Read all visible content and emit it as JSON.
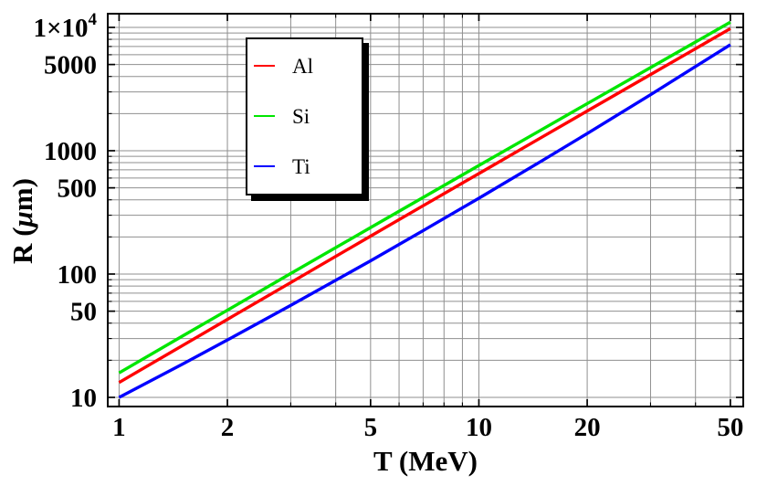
{
  "chart_data": {
    "type": "line",
    "title": "",
    "xlabel": "T (MeV)",
    "ylabel": "R (μm)",
    "ylabel_parts": {
      "pre": "R (",
      "mu": "μ",
      "post": "m)"
    },
    "x_scale": "log",
    "y_scale": "log",
    "xlim": [
      0.93,
      54.3
    ],
    "ylim": [
      8.43,
      12910
    ],
    "grid": true,
    "legend_position": "upper-left-inside",
    "x_ticks": [
      {
        "v": 1,
        "label": "1"
      },
      {
        "v": 2,
        "label": "2"
      },
      {
        "v": 5,
        "label": "5"
      },
      {
        "v": 10,
        "label": "10"
      },
      {
        "v": 20,
        "label": "20"
      },
      {
        "v": 50,
        "label": "50"
      }
    ],
    "y_ticks": [
      {
        "v": 10,
        "label": "10"
      },
      {
        "v": 50,
        "label": "50"
      },
      {
        "v": 100,
        "label": "100"
      },
      {
        "v": 500,
        "label": "500"
      },
      {
        "v": 1000,
        "label": "1000"
      },
      {
        "v": 5000,
        "label": "5000"
      },
      {
        "v": 10000,
        "label": "1×10",
        "exp": "4"
      }
    ],
    "x_grid": [
      1,
      2,
      3,
      4,
      5,
      6,
      7,
      8,
      9,
      10,
      20,
      30,
      40,
      50
    ],
    "y_grid": [
      10,
      20,
      30,
      40,
      50,
      60,
      70,
      80,
      90,
      100,
      200,
      300,
      400,
      500,
      600,
      700,
      800,
      900,
      1000,
      2000,
      3000,
      4000,
      5000,
      6000,
      7000,
      8000,
      9000,
      10000
    ],
    "x": [
      1,
      1.5,
      2,
      3,
      5,
      7,
      10,
      15,
      20,
      30,
      50
    ],
    "series": [
      {
        "name": "Al",
        "color": "#FF0000",
        "values": [
          13.2,
          26.3,
          42.9,
          85.3,
          203,
          358,
          653,
          1293,
          2098,
          4146,
          9772
        ]
      },
      {
        "name": "Si",
        "color": "#00E600",
        "values": [
          15.8,
          31.4,
          50.9,
          101,
          238,
          418,
          759,
          1491,
          2409,
          4723,
          11020
        ]
      },
      {
        "name": "Ti",
        "color": "#0000FF",
        "values": [
          10.0,
          18.6,
          29.2,
          55.7,
          128,
          225,
          412,
          831,
          1378,
          2846,
          7244
        ]
      }
    ]
  },
  "styles": {
    "background": "#FFFFFF",
    "grid_color": "#8F8F8F",
    "frame_color": "#000000",
    "text_color": "#000000",
    "legend_border_color": "#000000",
    "legend_shadow_color": "#000000"
  }
}
